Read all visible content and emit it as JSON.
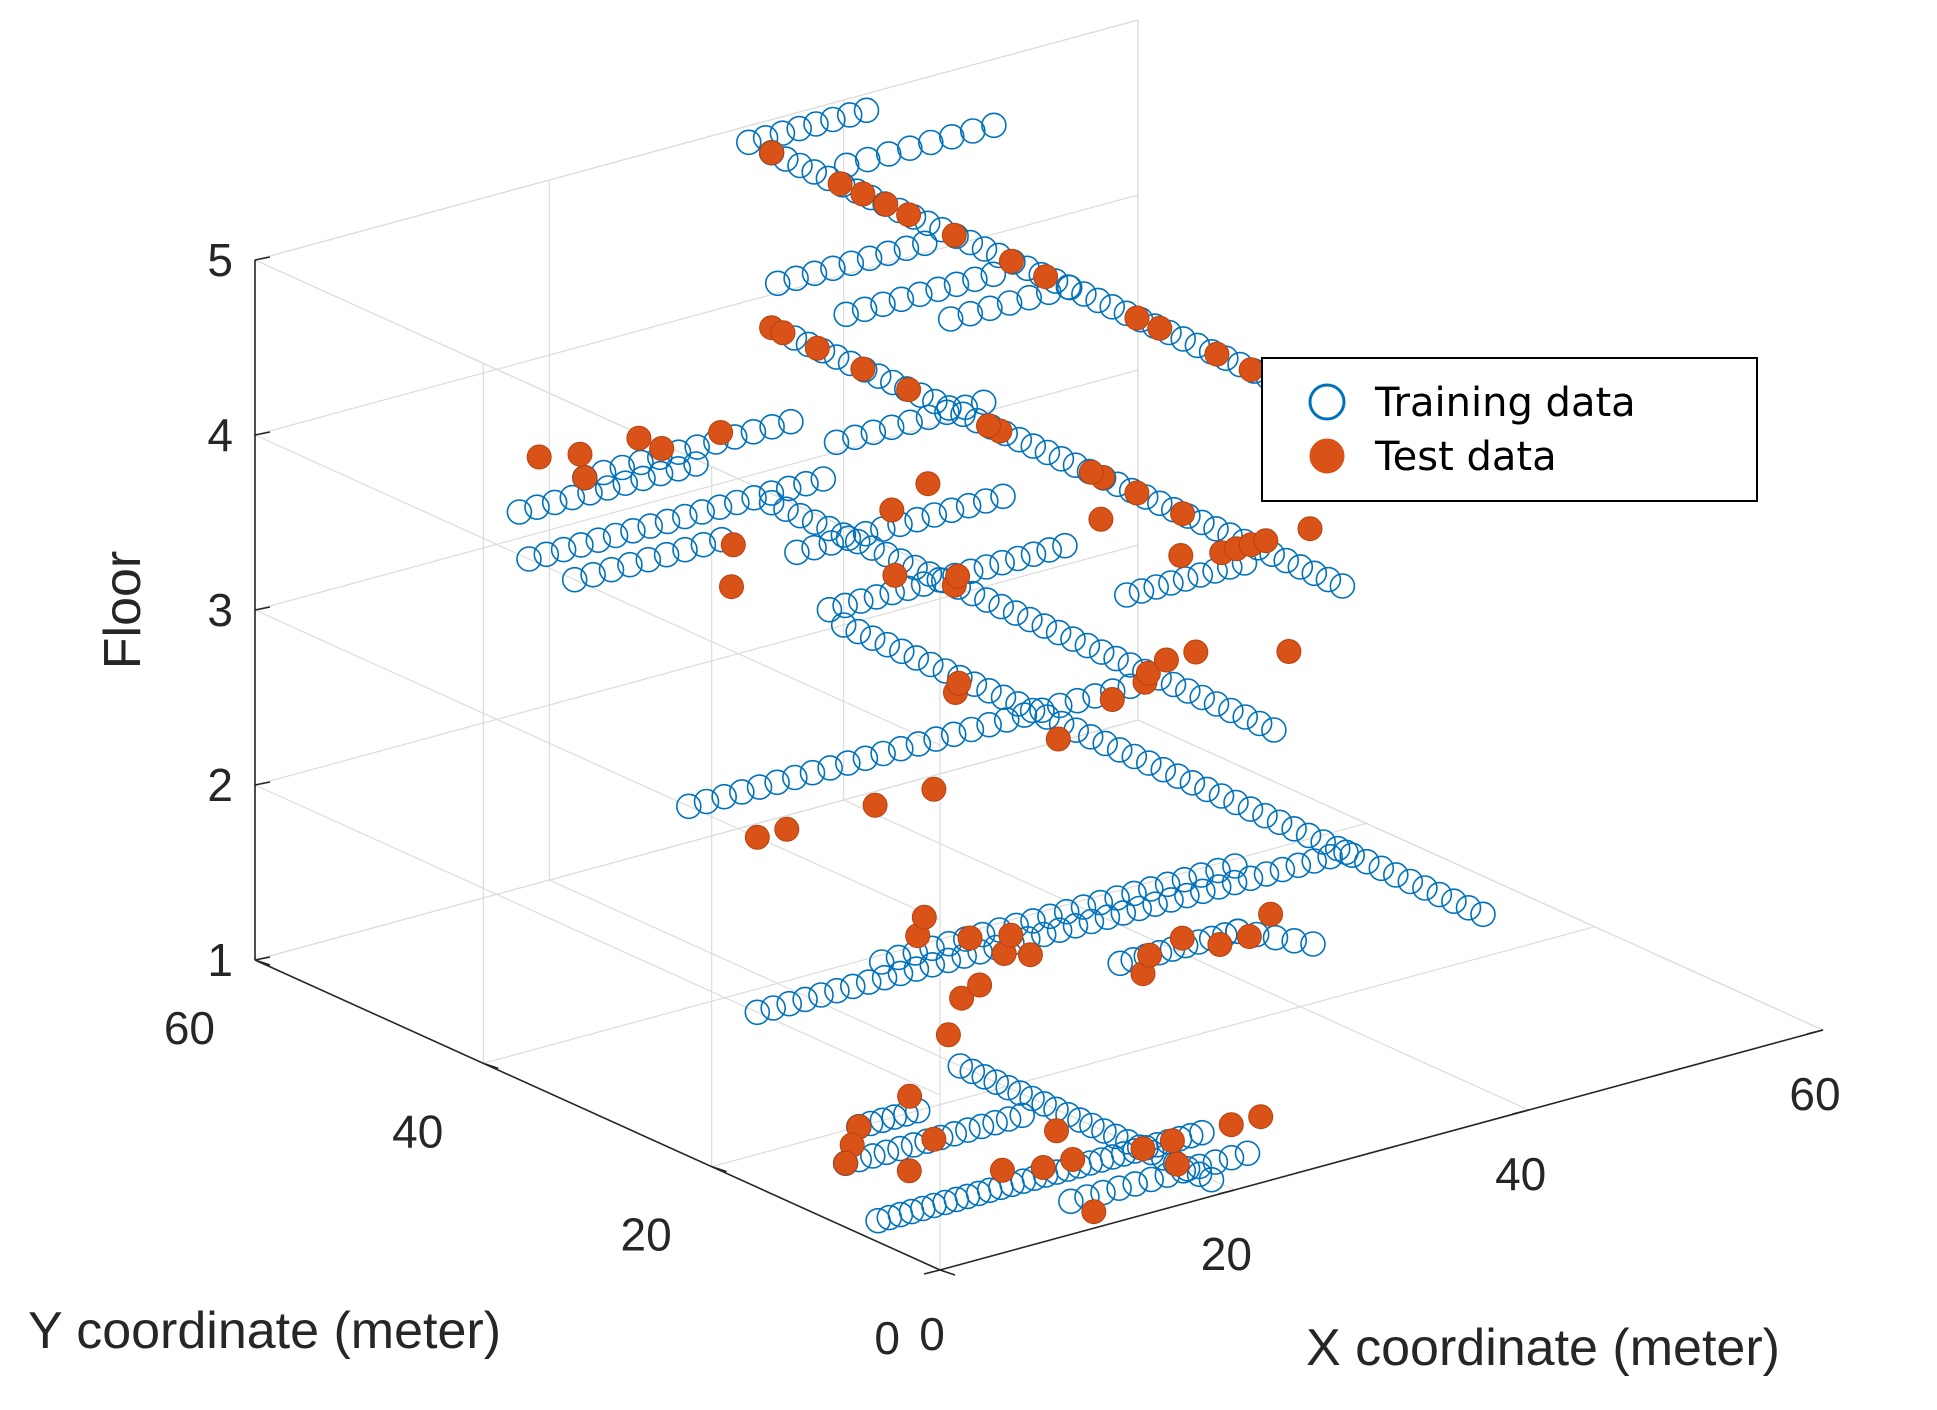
{
  "chart_data": {
    "type": "scatter",
    "dimensions": 3,
    "title": "",
    "xlabel": "X coordinate (meter)",
    "ylabel": "Y coordinate (meter)",
    "zlabel": "Floor",
    "xlim": [
      0,
      60
    ],
    "ylim": [
      0,
      60
    ],
    "zlim": [
      1,
      5
    ],
    "xticks": [
      0,
      20,
      40,
      60
    ],
    "yticks": [
      0,
      20,
      40,
      60
    ],
    "zticks": [
      1,
      2,
      3,
      4,
      5
    ],
    "grid": true,
    "legend_position": "top-right",
    "colors": {
      "training": "#0072BD",
      "test": "#D95319"
    },
    "series": [
      {
        "name": "Training data",
        "marker": "open-circle",
        "segments": [
          {
            "floor": 1,
            "x": [
              2,
              24
            ],
            "y": [
              8,
              8
            ],
            "n": 30
          },
          {
            "floor": 1,
            "x": [
              20,
              20
            ],
            "y": [
              2,
              24
            ],
            "n": 22
          },
          {
            "floor": 1,
            "x": [
              6,
              18
            ],
            "y": [
              16,
              16
            ],
            "n": 14
          },
          {
            "floor": 1,
            "x": [
              10,
              14
            ],
            "y": [
              20,
              20
            ],
            "n": 6
          },
          {
            "floor": 1,
            "x": [
              12,
              24
            ],
            "y": [
              4,
              4
            ],
            "n": 12
          },
          {
            "floor": 2,
            "x": [
              40,
              40
            ],
            "y": [
              4,
              60
            ],
            "n": 45
          },
          {
            "floor": 2,
            "x": [
              0,
              40
            ],
            "y": [
              16,
              16
            ],
            "n": 38
          },
          {
            "floor": 2,
            "x": [
              20,
              28
            ],
            "y": [
              10,
              10
            ],
            "n": 10
          },
          {
            "floor": 2,
            "x": [
              10,
              34
            ],
            "y": [
              18,
              18
            ],
            "n": 22
          },
          {
            "floor": 2,
            "x": [
              28,
              30
            ],
            "y": [
              10,
              6
            ],
            "n": 5
          },
          {
            "floor": 3,
            "x": [
              32,
              32
            ],
            "y": [
              12,
              56
            ],
            "n": 36
          },
          {
            "floor": 3,
            "x": [
              0,
              30
            ],
            "y": [
              22,
              22
            ],
            "n": 26
          },
          {
            "floor": 4,
            "x": [
              32,
              32
            ],
            "y": [
              6,
              54
            ],
            "n": 40
          },
          {
            "floor": 4,
            "x": [
              22,
              30
            ],
            "y": [
              12,
              12
            ],
            "n": 9
          },
          {
            "floor": 4,
            "x": [
              8,
              24
            ],
            "y": [
              20,
              20
            ],
            "n": 16
          },
          {
            "floor": 4,
            "x": [
              0,
              20
            ],
            "y": [
              36,
              36
            ],
            "n": 18
          },
          {
            "floor": 4,
            "x": [
              0,
              10
            ],
            "y": [
              32,
              32
            ],
            "n": 9
          },
          {
            "floor": 4,
            "x": [
              12,
              26
            ],
            "y": [
              28,
              28
            ],
            "n": 13
          },
          {
            "floor": 4,
            "x": [
              4,
              16
            ],
            "y": [
              42,
              42
            ],
            "n": 11
          },
          {
            "floor": 4,
            "x": [
              10,
              24
            ],
            "y": [
              44,
              44
            ],
            "n": 12
          },
          {
            "floor": 4,
            "x": [
              24,
              34
            ],
            "y": [
              40,
              40
            ],
            "n": 9
          },
          {
            "floor": 5,
            "x": [
              32,
              32
            ],
            "y": [
              10,
              56
            ],
            "n": 38
          },
          {
            "floor": 5,
            "x": [
              32,
              40
            ],
            "y": [
              58,
              58
            ],
            "n": 8
          },
          {
            "floor": 5,
            "x": [
              34,
              44
            ],
            "y": [
              52,
              52
            ],
            "n": 8
          },
          {
            "floor": 5,
            "x": [
              20,
              30
            ],
            "y": [
              40,
              40
            ],
            "n": 9
          },
          {
            "floor": 5,
            "x": [
              20,
              30
            ],
            "y": [
              34,
              34
            ],
            "n": 9
          },
          {
            "floor": 5,
            "x": [
              24,
              32
            ],
            "y": [
              30,
              30
            ],
            "n": 7
          }
        ]
      },
      {
        "name": "Test data",
        "marker": "filled-circle",
        "points": [
          [
            12,
            2,
            1
          ],
          [
            14,
            9,
            1
          ],
          [
            18,
            13,
            1
          ],
          [
            15,
            22,
            1
          ],
          [
            10,
            20,
            1
          ],
          [
            8,
            18,
            1
          ],
          [
            6,
            16,
            1
          ],
          [
            8,
            13,
            1
          ],
          [
            12,
            16,
            1
          ],
          [
            12,
            10,
            1
          ],
          [
            16,
            9,
            1
          ],
          [
            20,
            8,
            1
          ],
          [
            22,
            8,
            1
          ],
          [
            26,
            8,
            1
          ],
          [
            28,
            8,
            1
          ],
          [
            20,
            5,
            1
          ],
          [
            20,
            8,
            2
          ],
          [
            22,
            10,
            2
          ],
          [
            25,
            11,
            2
          ],
          [
            26,
            9,
            2
          ],
          [
            28,
            9,
            2
          ],
          [
            31,
            11,
            2
          ],
          [
            17,
            14,
            2
          ],
          [
            16,
            15,
            2
          ],
          [
            18,
            17,
            2
          ],
          [
            16,
            18,
            2
          ],
          [
            14,
            20,
            2
          ],
          [
            16,
            22,
            2
          ],
          [
            6,
            7,
            2
          ],
          [
            10,
            11,
            2
          ],
          [
            12,
            12,
            2
          ],
          [
            0,
            16,
            3
          ],
          [
            2,
            16,
            3
          ],
          [
            8,
            16,
            3
          ],
          [
            12,
            16,
            3
          ],
          [
            22,
            18,
            3
          ],
          [
            28,
            21,
            3
          ],
          [
            31,
            22,
            3
          ],
          [
            32,
            23,
            3
          ],
          [
            34,
            24,
            3
          ],
          [
            36,
            24,
            3
          ],
          [
            40,
            21,
            3
          ],
          [
            22,
            27,
            3
          ],
          [
            23,
            28,
            3
          ],
          [
            32,
            40,
            3
          ],
          [
            33,
            41,
            3
          ],
          [
            6,
            26,
            4
          ],
          [
            14,
            22,
            4
          ],
          [
            10,
            31,
            4
          ],
          [
            20,
            30,
            4
          ],
          [
            24,
            32,
            4
          ],
          [
            28,
            22,
            4
          ],
          [
            32,
            48,
            4
          ],
          [
            32,
            52,
            4
          ],
          [
            32,
            56,
            4
          ],
          [
            32,
            55,
            4
          ],
          [
            32,
            44,
            4
          ],
          [
            32,
            20,
            4
          ],
          [
            32,
            24,
            4
          ],
          [
            32,
            27,
            4
          ],
          [
            32,
            28,
            4
          ],
          [
            32,
            36,
            4
          ],
          [
            32,
            37,
            4
          ],
          [
            28,
            15,
            4
          ],
          [
            30,
            14,
            4
          ],
          [
            31,
            14,
            4
          ],
          [
            32,
            14,
            4
          ],
          [
            33,
            14,
            4
          ],
          [
            36,
            14,
            4
          ],
          [
            16,
            45,
            4
          ],
          [
            12,
            47,
            4
          ],
          [
            10,
            48,
            4
          ],
          [
            10,
            44,
            4
          ],
          [
            16,
            47,
            4
          ],
          [
            20,
            45,
            4
          ],
          [
            32,
            14,
            5
          ],
          [
            32,
            17,
            5
          ],
          [
            32,
            22,
            5
          ],
          [
            32,
            24,
            5
          ],
          [
            32,
            32,
            5
          ],
          [
            32,
            35,
            5
          ],
          [
            32,
            40,
            5
          ],
          [
            32,
            44,
            5
          ],
          [
            32,
            46,
            5
          ],
          [
            32,
            48,
            5
          ],
          [
            32,
            50,
            5
          ],
          [
            32,
            56,
            5
          ]
        ]
      }
    ]
  }
}
